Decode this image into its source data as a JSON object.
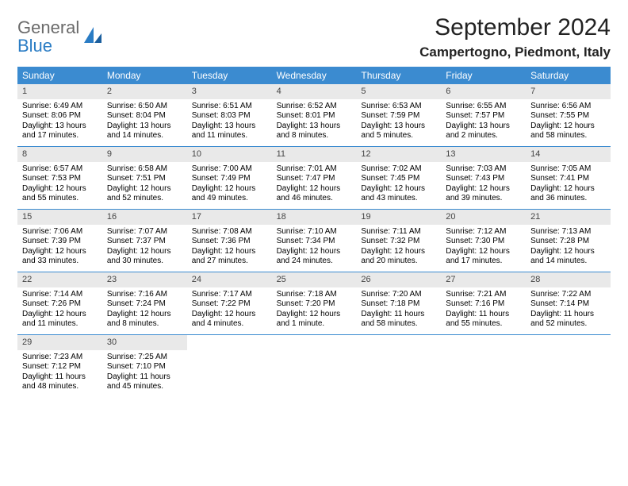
{
  "logo": {
    "general": "General",
    "blue": "Blue"
  },
  "title": "September 2024",
  "location": "Campertogno, Piedmont, Italy",
  "colors": {
    "header_bg": "#3b8bd0",
    "header_text": "#ffffff",
    "daynum_bg": "#e9e9e9",
    "week_divider": "#3b8bd0",
    "logo_gray": "#6b6b6b",
    "logo_blue": "#2a7cc4"
  },
  "weekdays": [
    "Sunday",
    "Monday",
    "Tuesday",
    "Wednesday",
    "Thursday",
    "Friday",
    "Saturday"
  ],
  "days": [
    {
      "n": "1",
      "sunrise": "Sunrise: 6:49 AM",
      "sunset": "Sunset: 8:06 PM",
      "day1": "Daylight: 13 hours",
      "day2": "and 17 minutes."
    },
    {
      "n": "2",
      "sunrise": "Sunrise: 6:50 AM",
      "sunset": "Sunset: 8:04 PM",
      "day1": "Daylight: 13 hours",
      "day2": "and 14 minutes."
    },
    {
      "n": "3",
      "sunrise": "Sunrise: 6:51 AM",
      "sunset": "Sunset: 8:03 PM",
      "day1": "Daylight: 13 hours",
      "day2": "and 11 minutes."
    },
    {
      "n": "4",
      "sunrise": "Sunrise: 6:52 AM",
      "sunset": "Sunset: 8:01 PM",
      "day1": "Daylight: 13 hours",
      "day2": "and 8 minutes."
    },
    {
      "n": "5",
      "sunrise": "Sunrise: 6:53 AM",
      "sunset": "Sunset: 7:59 PM",
      "day1": "Daylight: 13 hours",
      "day2": "and 5 minutes."
    },
    {
      "n": "6",
      "sunrise": "Sunrise: 6:55 AM",
      "sunset": "Sunset: 7:57 PM",
      "day1": "Daylight: 13 hours",
      "day2": "and 2 minutes."
    },
    {
      "n": "7",
      "sunrise": "Sunrise: 6:56 AM",
      "sunset": "Sunset: 7:55 PM",
      "day1": "Daylight: 12 hours",
      "day2": "and 58 minutes."
    },
    {
      "n": "8",
      "sunrise": "Sunrise: 6:57 AM",
      "sunset": "Sunset: 7:53 PM",
      "day1": "Daylight: 12 hours",
      "day2": "and 55 minutes."
    },
    {
      "n": "9",
      "sunrise": "Sunrise: 6:58 AM",
      "sunset": "Sunset: 7:51 PM",
      "day1": "Daylight: 12 hours",
      "day2": "and 52 minutes."
    },
    {
      "n": "10",
      "sunrise": "Sunrise: 7:00 AM",
      "sunset": "Sunset: 7:49 PM",
      "day1": "Daylight: 12 hours",
      "day2": "and 49 minutes."
    },
    {
      "n": "11",
      "sunrise": "Sunrise: 7:01 AM",
      "sunset": "Sunset: 7:47 PM",
      "day1": "Daylight: 12 hours",
      "day2": "and 46 minutes."
    },
    {
      "n": "12",
      "sunrise": "Sunrise: 7:02 AM",
      "sunset": "Sunset: 7:45 PM",
      "day1": "Daylight: 12 hours",
      "day2": "and 43 minutes."
    },
    {
      "n": "13",
      "sunrise": "Sunrise: 7:03 AM",
      "sunset": "Sunset: 7:43 PM",
      "day1": "Daylight: 12 hours",
      "day2": "and 39 minutes."
    },
    {
      "n": "14",
      "sunrise": "Sunrise: 7:05 AM",
      "sunset": "Sunset: 7:41 PM",
      "day1": "Daylight: 12 hours",
      "day2": "and 36 minutes."
    },
    {
      "n": "15",
      "sunrise": "Sunrise: 7:06 AM",
      "sunset": "Sunset: 7:39 PM",
      "day1": "Daylight: 12 hours",
      "day2": "and 33 minutes."
    },
    {
      "n": "16",
      "sunrise": "Sunrise: 7:07 AM",
      "sunset": "Sunset: 7:37 PM",
      "day1": "Daylight: 12 hours",
      "day2": "and 30 minutes."
    },
    {
      "n": "17",
      "sunrise": "Sunrise: 7:08 AM",
      "sunset": "Sunset: 7:36 PM",
      "day1": "Daylight: 12 hours",
      "day2": "and 27 minutes."
    },
    {
      "n": "18",
      "sunrise": "Sunrise: 7:10 AM",
      "sunset": "Sunset: 7:34 PM",
      "day1": "Daylight: 12 hours",
      "day2": "and 24 minutes."
    },
    {
      "n": "19",
      "sunrise": "Sunrise: 7:11 AM",
      "sunset": "Sunset: 7:32 PM",
      "day1": "Daylight: 12 hours",
      "day2": "and 20 minutes."
    },
    {
      "n": "20",
      "sunrise": "Sunrise: 7:12 AM",
      "sunset": "Sunset: 7:30 PM",
      "day1": "Daylight: 12 hours",
      "day2": "and 17 minutes."
    },
    {
      "n": "21",
      "sunrise": "Sunrise: 7:13 AM",
      "sunset": "Sunset: 7:28 PM",
      "day1": "Daylight: 12 hours",
      "day2": "and 14 minutes."
    },
    {
      "n": "22",
      "sunrise": "Sunrise: 7:14 AM",
      "sunset": "Sunset: 7:26 PM",
      "day1": "Daylight: 12 hours",
      "day2": "and 11 minutes."
    },
    {
      "n": "23",
      "sunrise": "Sunrise: 7:16 AM",
      "sunset": "Sunset: 7:24 PM",
      "day1": "Daylight: 12 hours",
      "day2": "and 8 minutes."
    },
    {
      "n": "24",
      "sunrise": "Sunrise: 7:17 AM",
      "sunset": "Sunset: 7:22 PM",
      "day1": "Daylight: 12 hours",
      "day2": "and 4 minutes."
    },
    {
      "n": "25",
      "sunrise": "Sunrise: 7:18 AM",
      "sunset": "Sunset: 7:20 PM",
      "day1": "Daylight: 12 hours",
      "day2": "and 1 minute."
    },
    {
      "n": "26",
      "sunrise": "Sunrise: 7:20 AM",
      "sunset": "Sunset: 7:18 PM",
      "day1": "Daylight: 11 hours",
      "day2": "and 58 minutes."
    },
    {
      "n": "27",
      "sunrise": "Sunrise: 7:21 AM",
      "sunset": "Sunset: 7:16 PM",
      "day1": "Daylight: 11 hours",
      "day2": "and 55 minutes."
    },
    {
      "n": "28",
      "sunrise": "Sunrise: 7:22 AM",
      "sunset": "Sunset: 7:14 PM",
      "day1": "Daylight: 11 hours",
      "day2": "and 52 minutes."
    },
    {
      "n": "29",
      "sunrise": "Sunrise: 7:23 AM",
      "sunset": "Sunset: 7:12 PM",
      "day1": "Daylight: 11 hours",
      "day2": "and 48 minutes."
    },
    {
      "n": "30",
      "sunrise": "Sunrise: 7:25 AM",
      "sunset": "Sunset: 7:10 PM",
      "day1": "Daylight: 11 hours",
      "day2": "and 45 minutes."
    }
  ]
}
